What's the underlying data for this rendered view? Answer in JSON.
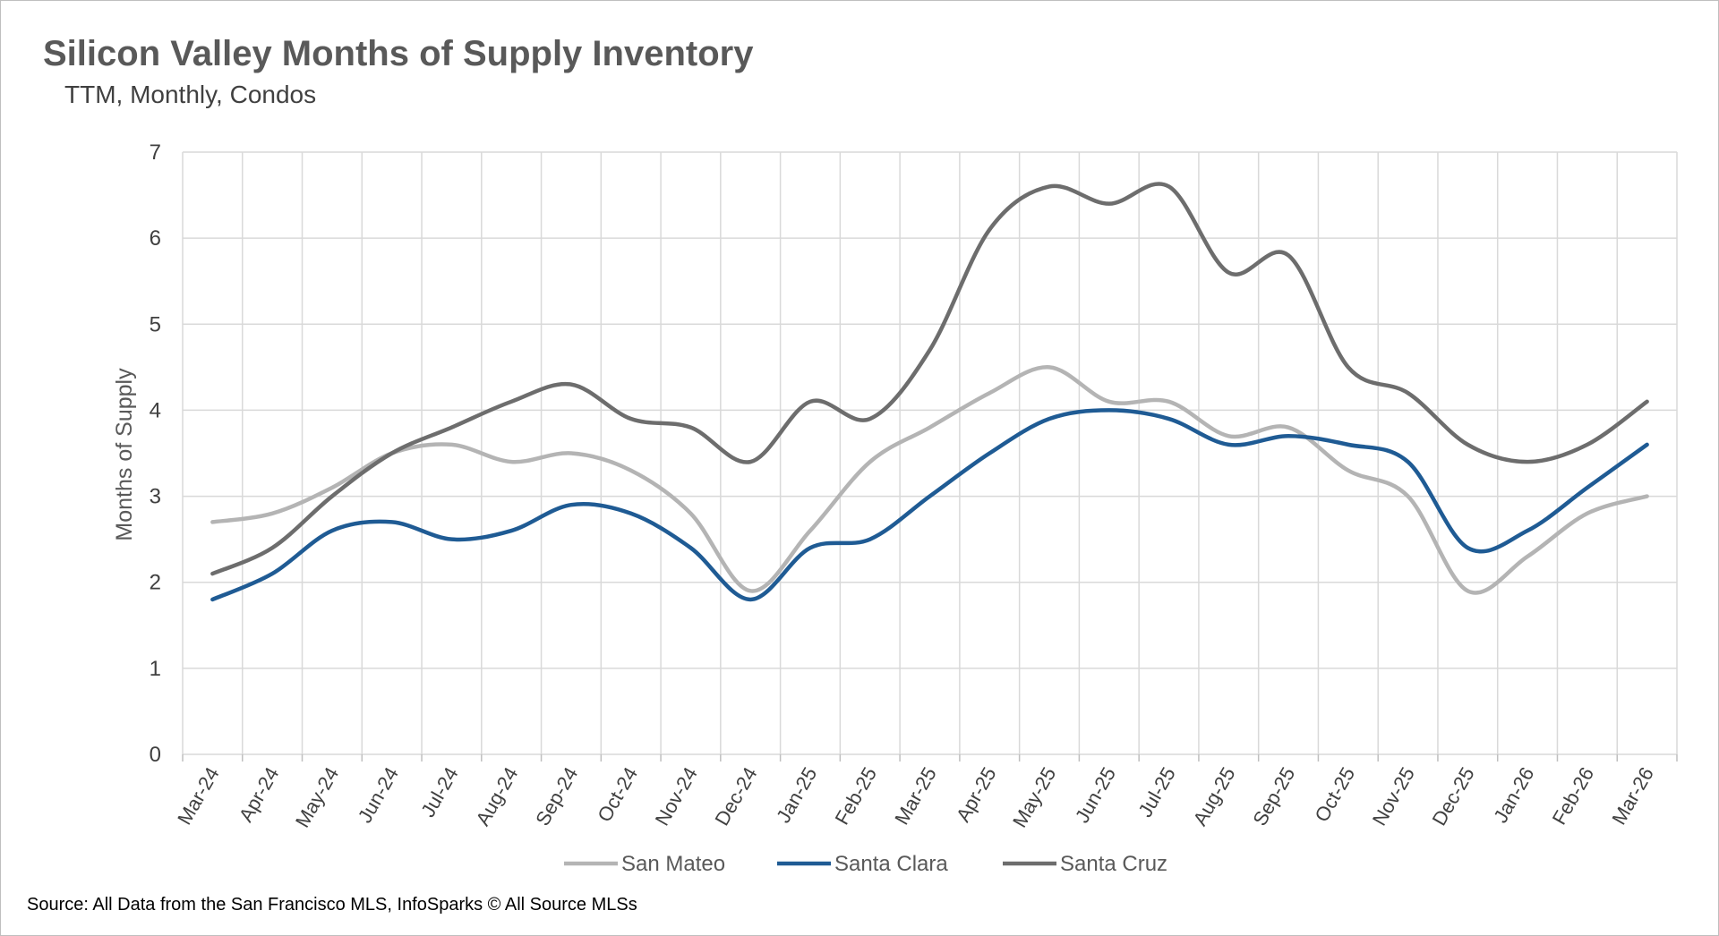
{
  "chart_data": {
    "type": "line",
    "title": "Silicon Valley Months of Supply Inventory",
    "subtitle": "TTM, Monthly, Condos",
    "ylabel": "Months of Supply",
    "xlabel": "",
    "ylim": [
      0,
      7
    ],
    "yticks": [
      0,
      1,
      2,
      3,
      4,
      5,
      6,
      7
    ],
    "grid": true,
    "legend": "bottom",
    "categories": [
      "Mar-24",
      "Apr-24",
      "May-24",
      "Jun-24",
      "Jul-24",
      "Aug-24",
      "Sep-24",
      "Oct-24",
      "Nov-24",
      "Dec-24",
      "Jan-25",
      "Feb-25",
      "Mar-25",
      "Apr-25",
      "May-25",
      "Jun-25",
      "Jul-25",
      "Aug-25",
      "Sep-25",
      "Oct-25",
      "Nov-25",
      "Dec-25",
      "Jan-26",
      "Feb-26",
      "Mar-26"
    ],
    "series": [
      {
        "name": "San Mateo",
        "color": "#b4b4b4",
        "values": [
          2.7,
          2.8,
          3.1,
          3.5,
          3.6,
          3.4,
          3.5,
          3.3,
          2.8,
          1.9,
          2.6,
          3.4,
          3.8,
          4.2,
          4.5,
          4.1,
          4.1,
          3.7,
          3.8,
          3.3,
          3.0,
          1.9,
          2.3,
          2.8,
          3.0
        ]
      },
      {
        "name": "Santa Clara",
        "color": "#1f5b94",
        "values": [
          1.8,
          2.1,
          2.6,
          2.7,
          2.5,
          2.6,
          2.9,
          2.8,
          2.4,
          1.8,
          2.4,
          2.5,
          3.0,
          3.5,
          3.9,
          4.0,
          3.9,
          3.6,
          3.7,
          3.6,
          3.4,
          2.4,
          2.6,
          3.1,
          3.6
        ]
      },
      {
        "name": "Santa Cruz",
        "color": "#6d6d6d",
        "values": [
          2.1,
          2.4,
          3.0,
          3.5,
          3.8,
          4.1,
          4.3,
          3.9,
          3.8,
          3.4,
          4.1,
          3.9,
          4.7,
          6.1,
          6.6,
          6.4,
          6.6,
          5.6,
          5.8,
          4.5,
          4.2,
          3.6,
          3.4,
          3.6,
          4.1
        ]
      }
    ]
  },
  "source": "Source: All Data from the San Francisco MLS, InfoSparks © All Source MLSs"
}
